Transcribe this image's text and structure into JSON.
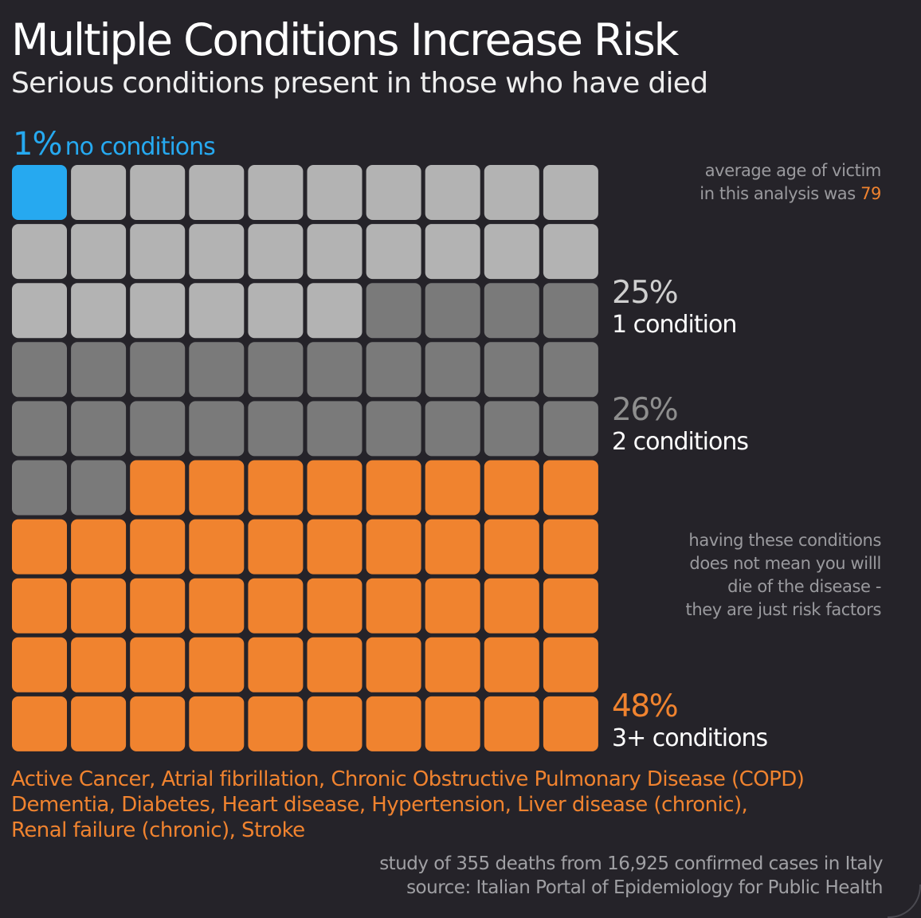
{
  "title": "Multiple Conditions Increase Risk",
  "subtitle": "Serious conditions present in those who have died",
  "note_age": {
    "line1": "average age of victim",
    "line2": "in this analysis was",
    "value": "79"
  },
  "note_risk": {
    "lines": [
      "having these conditions",
      "does not mean you willl",
      "die of the disease -",
      "they are just risk factors"
    ]
  },
  "conditions_list": [
    "Active Cancer, Atrial fibrillation, Chronic Obstructive Pulmonary Disease (COPD)",
    "Dementia, Diabetes, Heart disease, Hypertension, Liver disease (chronic),",
    "Renal failure (chronic), Stroke"
  ],
  "source": {
    "line1": "study of 355 deaths from 16,925 confirmed cases in Italy",
    "line2": "source: Italian Portal of Epidemiology for Public Health"
  },
  "colors": {
    "no_conditions": "#26a9f0",
    "one_condition": "#b3b3b3",
    "two_conditions": "#7a7a7a",
    "three_plus_conditions": "#f0832f",
    "background": "#252329"
  },
  "chart_data": {
    "type": "waffle",
    "grid": {
      "rows": 10,
      "cols": 10,
      "units_per_square": 1
    },
    "categories": [
      {
        "key": "none",
        "pct_label": "1%",
        "label": "no conditions",
        "value": 1,
        "color": "#26a9f0"
      },
      {
        "key": "one",
        "pct_label": "25%",
        "label": "1 condition",
        "value": 25,
        "color": "#b3b3b3"
      },
      {
        "key": "two",
        "pct_label": "26%",
        "label": "2 conditions",
        "value": 26,
        "color": "#7a7a7a"
      },
      {
        "key": "three",
        "pct_label": "48%",
        "label": "3+ conditions",
        "value": 48,
        "color": "#f0832f"
      }
    ]
  }
}
